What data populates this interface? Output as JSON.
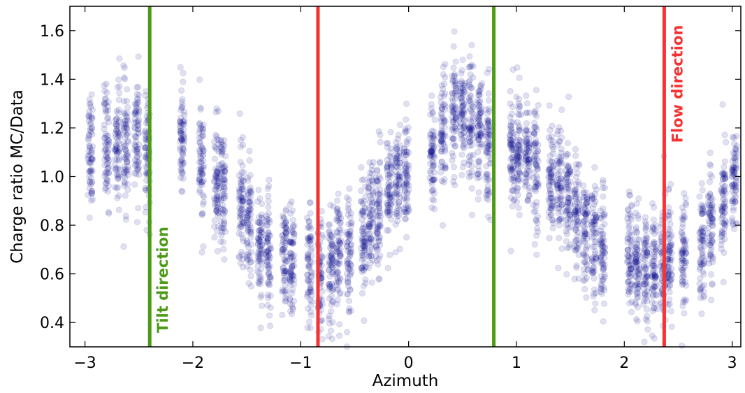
{
  "chart_data": {
    "type": "scatter",
    "title": "",
    "xlabel": "Azimuth",
    "ylabel": "Charge ratio MC/Data",
    "xlim": [
      -3.14,
      3.08
    ],
    "ylim": [
      0.3,
      1.7
    ],
    "xticks": [
      -3,
      -2,
      -1,
      0,
      1,
      2,
      3
    ],
    "yticks": [
      0.4,
      0.6,
      0.8,
      1.0,
      1.2,
      1.4,
      1.6
    ],
    "point_color": "#00008b",
    "point_alpha": 0.12,
    "grid": false,
    "legend": "none",
    "series": [
      {
        "x_centers": [
          -2.95,
          -2.8,
          -2.7,
          -2.62,
          -2.52,
          -2.42,
          -2.1,
          -1.92,
          -1.78,
          -1.72,
          -1.55,
          -1.48,
          -1.38,
          -1.3,
          -1.15,
          -1.08,
          -0.92,
          -0.82,
          -0.72,
          -0.65,
          -0.55,
          -0.42,
          -0.35,
          -0.28,
          -0.18,
          -0.1,
          -0.02,
          0.22,
          0.32,
          0.42,
          0.5,
          0.58,
          0.66,
          0.74,
          0.96,
          1.02,
          1.1,
          1.18,
          1.32,
          1.4,
          1.48,
          1.56,
          1.64,
          1.72,
          1.8,
          2.05,
          2.12,
          2.2,
          2.28,
          2.36,
          2.42,
          2.55,
          2.72,
          2.8,
          2.92,
          3.02
        ],
        "y_centers": [
          1.12,
          1.12,
          1.14,
          1.13,
          1.16,
          1.07,
          1.16,
          1.03,
          0.98,
          0.95,
          0.88,
          0.8,
          0.72,
          0.7,
          0.65,
          0.63,
          0.62,
          0.6,
          0.62,
          0.66,
          0.7,
          0.76,
          0.82,
          0.86,
          0.92,
          0.98,
          1.0,
          1.08,
          1.16,
          1.22,
          1.26,
          1.24,
          1.22,
          1.14,
          1.1,
          1.12,
          1.08,
          1.04,
          1.0,
          0.96,
          0.9,
          0.84,
          0.78,
          0.74,
          0.7,
          0.66,
          0.64,
          0.62,
          0.62,
          0.63,
          0.66,
          0.68,
          0.72,
          0.8,
          0.9,
          0.98
        ]
      }
    ],
    "vlines": [
      {
        "x": -2.4,
        "label": "Tilt direction",
        "color": "#4c9a16",
        "label_side": "right"
      },
      {
        "x": -0.84,
        "label": "",
        "color": "#f53333",
        "label_side": "none"
      },
      {
        "x": 0.79,
        "label": "",
        "color": "#4c9a16",
        "label_side": "none"
      },
      {
        "x": 2.37,
        "label": "Flow direction",
        "color": "#f53333",
        "label_side": "right"
      }
    ]
  }
}
